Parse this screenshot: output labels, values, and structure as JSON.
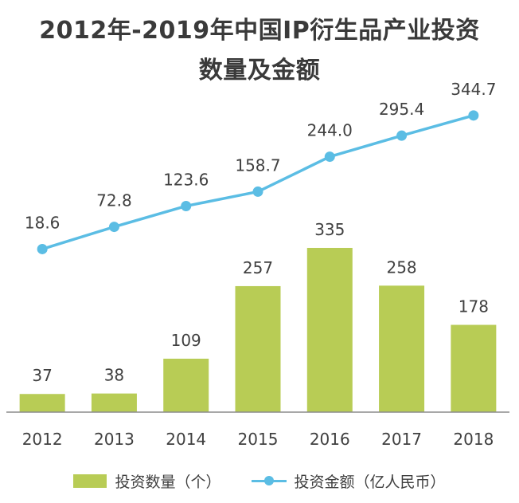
{
  "title_lines": [
    "2012年-2019年中国IP衍生品产业投资",
    "数量及金额"
  ],
  "chart_data": {
    "type": "bar",
    "categories": [
      "2012",
      "2013",
      "2014",
      "2015",
      "2016",
      "2017",
      "2018"
    ],
    "series": [
      {
        "name": "投资数量（个）",
        "type": "bar",
        "color": "#b8cc55",
        "values": [
          37,
          38,
          109,
          257,
          335,
          258,
          178
        ],
        "labels": [
          "37",
          "38",
          "109",
          "257",
          "335",
          "258",
          "178"
        ]
      },
      {
        "name": "投资金额（亿人民币）",
        "type": "line",
        "color": "#5bbde4",
        "values": [
          18.6,
          72.8,
          123.6,
          158.7,
          244.0,
          295.4,
          344.7
        ],
        "labels": [
          "18.6",
          "72.8",
          "123.6",
          "158.7",
          "244.0",
          "295.4",
          "344.7"
        ]
      }
    ],
    "legend_position": "bottom",
    "grid": false
  }
}
